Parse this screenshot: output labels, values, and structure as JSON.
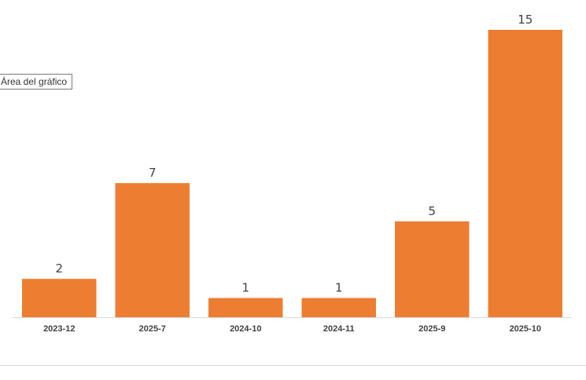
{
  "tooltip": {
    "label": "Área del gráfico"
  },
  "chart_data": {
    "type": "bar",
    "categories": [
      "2023-12",
      "2025-7",
      "2024-10",
      "2024-11",
      "2025-9",
      "2025-10"
    ],
    "values": [
      2,
      7,
      1,
      1,
      5,
      15
    ],
    "ylim": [
      0,
      15
    ],
    "grid": false,
    "bar_color": "#ED7D31",
    "axis_color": "#D9D9D9",
    "data_labels": true
  }
}
